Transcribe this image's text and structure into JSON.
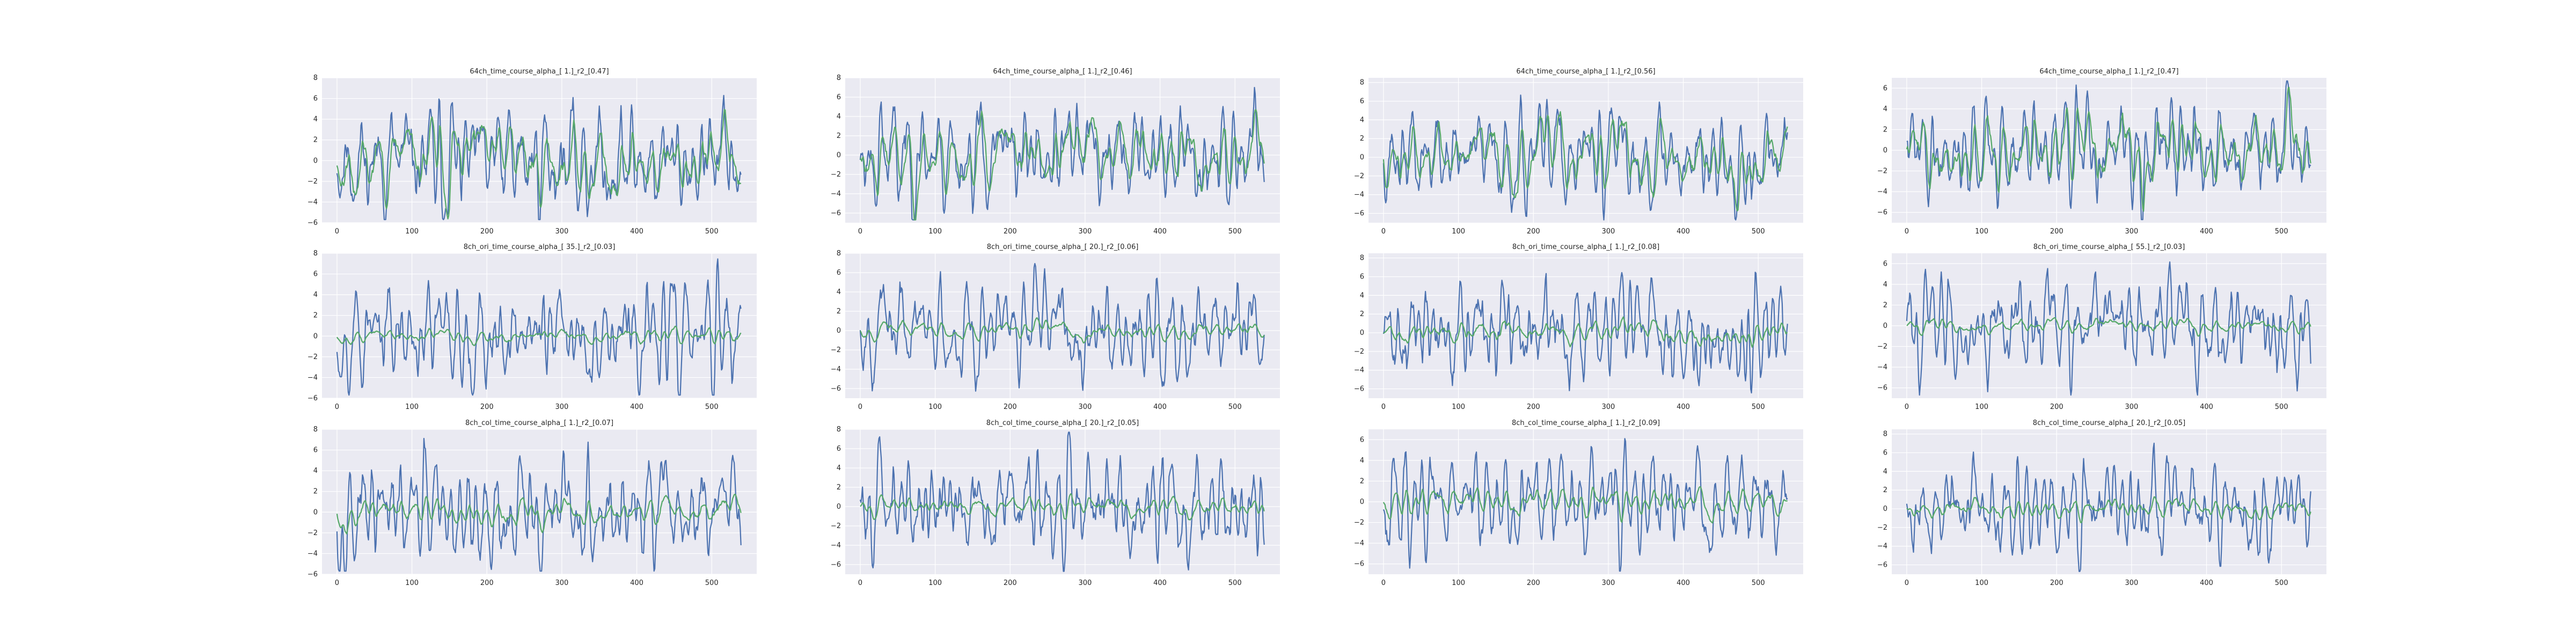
{
  "chart_data": [
    {
      "type": "line",
      "title": "64ch_time_course_alpha_[ 1.]_r2_[0.47]",
      "ylim": [
        -6,
        8
      ],
      "yticks": [
        -6,
        -4,
        -2,
        0,
        2,
        4,
        6,
        8
      ],
      "xlim": [
        -20,
        560
      ],
      "xticks": [
        0,
        100,
        200,
        300,
        400,
        500
      ],
      "amp": 2.6,
      "pred_amp": 1.9,
      "series": [
        {
          "color": "#4c72b0"
        },
        {
          "color": "#55a868"
        }
      ],
      "seed": 11
    },
    {
      "type": "line",
      "title": "64ch_time_course_alpha_[ 1.]_r2_[0.46]",
      "ylim": [
        -7,
        8
      ],
      "yticks": [
        -6,
        -4,
        -2,
        0,
        2,
        4,
        6,
        8
      ],
      "xlim": [
        -20,
        560
      ],
      "xticks": [
        0,
        100,
        200,
        300,
        400,
        500
      ],
      "amp": 2.6,
      "pred_amp": 1.9,
      "series": [
        {
          "color": "#4c72b0"
        },
        {
          "color": "#55a868"
        }
      ],
      "seed": 23
    },
    {
      "type": "line",
      "title": "64ch_time_course_alpha_[ 1.]_r2_[0.56]",
      "ylim": [
        -7,
        8.5
      ],
      "yticks": [
        -6,
        -4,
        -2,
        0,
        2,
        4,
        6,
        8
      ],
      "xlim": [
        -20,
        560
      ],
      "xticks": [
        0,
        100,
        200,
        300,
        400,
        500
      ],
      "amp": 2.6,
      "pred_amp": 2.0,
      "series": [
        {
          "color": "#4c72b0"
        },
        {
          "color": "#55a868"
        }
      ],
      "seed": 37
    },
    {
      "type": "line",
      "title": "64ch_time_course_alpha_[ 1.]_r2_[0.47]",
      "ylim": [
        -7,
        7
      ],
      "yticks": [
        -6,
        -4,
        -2,
        0,
        2,
        4,
        6
      ],
      "xlim": [
        -20,
        560
      ],
      "xticks": [
        0,
        100,
        200,
        300,
        400,
        500
      ],
      "amp": 2.4,
      "pred_amp": 1.8,
      "series": [
        {
          "color": "#4c72b0"
        },
        {
          "color": "#55a868"
        }
      ],
      "seed": 41
    },
    {
      "type": "line",
      "title": "8ch_ori_time_course_alpha_[ 35.]_r2_[0.03]",
      "ylim": [
        -6,
        8
      ],
      "yticks": [
        -6,
        -4,
        -2,
        0,
        2,
        4,
        6,
        8
      ],
      "xlim": [
        -20,
        560
      ],
      "xticks": [
        0,
        100,
        200,
        300,
        400,
        500
      ],
      "amp": 2.6,
      "pred_amp": 0.35,
      "series": [
        {
          "color": "#4c72b0"
        },
        {
          "color": "#55a868"
        }
      ],
      "seed": 53
    },
    {
      "type": "line",
      "title": "8ch_ori_time_course_alpha_[ 20.]_r2_[0.06]",
      "ylim": [
        -7,
        8
      ],
      "yticks": [
        -6,
        -4,
        -2,
        0,
        2,
        4,
        6,
        8
      ],
      "xlim": [
        -20,
        560
      ],
      "xticks": [
        0,
        100,
        200,
        300,
        400,
        500
      ],
      "amp": 2.6,
      "pred_amp": 0.5,
      "series": [
        {
          "color": "#4c72b0"
        },
        {
          "color": "#55a868"
        }
      ],
      "seed": 67
    },
    {
      "type": "line",
      "title": "8ch_ori_time_course_alpha_[ 1.]_r2_[0.08]",
      "ylim": [
        -7,
        8.5
      ],
      "yticks": [
        -6,
        -4,
        -2,
        0,
        2,
        4,
        6,
        8
      ],
      "xlim": [
        -20,
        560
      ],
      "xticks": [
        0,
        100,
        200,
        300,
        400,
        500
      ],
      "amp": 2.6,
      "pred_amp": 0.6,
      "series": [
        {
          "color": "#4c72b0"
        },
        {
          "color": "#55a868"
        }
      ],
      "seed": 71
    },
    {
      "type": "line",
      "title": "8ch_ori_time_course_alpha_[ 55.]_r2_[0.03]",
      "ylim": [
        -7,
        7
      ],
      "yticks": [
        -6,
        -4,
        -2,
        0,
        2,
        4,
        6
      ],
      "xlim": [
        -20,
        560
      ],
      "xticks": [
        0,
        100,
        200,
        300,
        400,
        500
      ],
      "amp": 2.4,
      "pred_amp": 0.35,
      "series": [
        {
          "color": "#4c72b0"
        },
        {
          "color": "#55a868"
        }
      ],
      "seed": 83
    },
    {
      "type": "line",
      "title": "8ch_col_time_course_alpha_[ 1.]_r2_[0.07]",
      "ylim": [
        -6,
        8
      ],
      "yticks": [
        -6,
        -4,
        -2,
        0,
        2,
        4,
        6,
        8
      ],
      "xlim": [
        -20,
        560
      ],
      "xticks": [
        0,
        100,
        200,
        300,
        400,
        500
      ],
      "amp": 2.6,
      "pred_amp": 0.7,
      "series": [
        {
          "color": "#4c72b0"
        },
        {
          "color": "#55a868"
        }
      ],
      "seed": 97
    },
    {
      "type": "line",
      "title": "8ch_col_time_course_alpha_[ 20.]_r2_[0.05]",
      "ylim": [
        -7,
        8
      ],
      "yticks": [
        -6,
        -4,
        -2,
        0,
        2,
        4,
        6,
        8
      ],
      "xlim": [
        -20,
        560
      ],
      "xticks": [
        0,
        100,
        200,
        300,
        400,
        500
      ],
      "amp": 2.6,
      "pred_amp": 0.5,
      "series": [
        {
          "color": "#4c72b0"
        },
        {
          "color": "#55a868"
        }
      ],
      "seed": 101
    },
    {
      "type": "line",
      "title": "8ch_col_time_course_alpha_[ 1.]_r2_[0.09]",
      "ylim": [
        -7,
        7
      ],
      "yticks": [
        -6,
        -4,
        -2,
        0,
        2,
        4,
        6
      ],
      "xlim": [
        -20,
        560
      ],
      "xticks": [
        0,
        100,
        200,
        300,
        400,
        500
      ],
      "amp": 2.5,
      "pred_amp": 0.7,
      "series": [
        {
          "color": "#4c72b0"
        },
        {
          "color": "#55a868"
        }
      ],
      "seed": 113
    },
    {
      "type": "line",
      "title": "8ch_col_time_course_alpha_[ 20.]_r2_[0.05]",
      "ylim": [
        -7,
        8.5
      ],
      "yticks": [
        -6,
        -4,
        -2,
        0,
        2,
        4,
        6,
        8
      ],
      "xlim": [
        -20,
        560
      ],
      "xticks": [
        0,
        100,
        200,
        300,
        400,
        500
      ],
      "amp": 2.5,
      "pred_amp": 0.5,
      "series": [
        {
          "color": "#4c72b0"
        },
        {
          "color": "#55a868"
        }
      ],
      "seed": 127
    }
  ]
}
